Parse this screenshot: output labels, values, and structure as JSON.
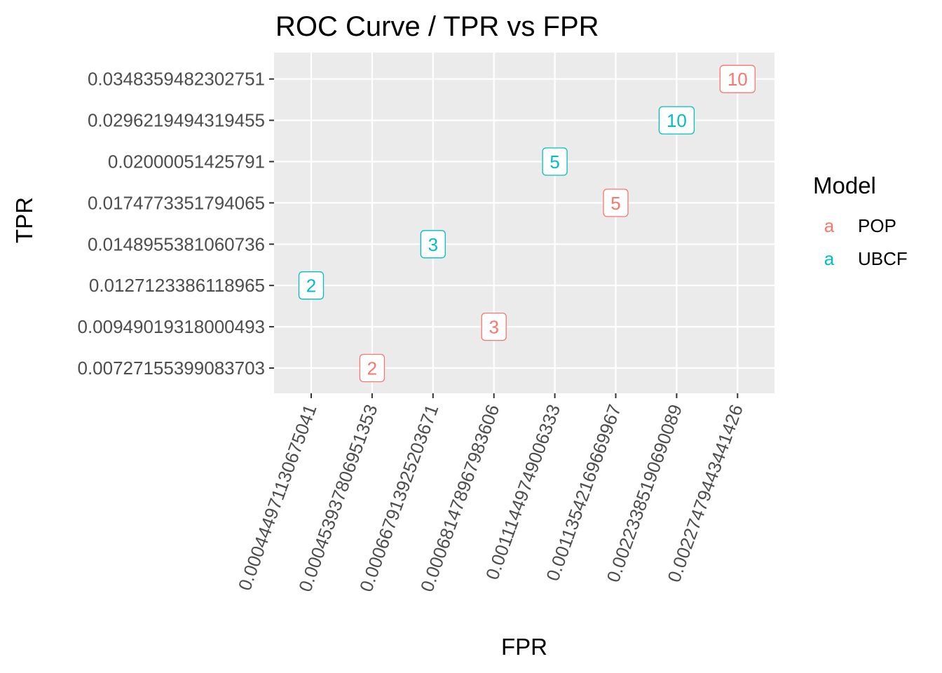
{
  "chart_data": {
    "type": "scatter",
    "title": "ROC Curve / TPR vs FPR",
    "xlabel": "FPR",
    "ylabel": "TPR",
    "x_categories": [
      "0.000444971130675041",
      "0.000453937806951353",
      "0.000667913925203671",
      "0.000681478967983606",
      "0.00111449749006333",
      "0.00113542169669967",
      "0.00223385190690089",
      "0.00227479443441426"
    ],
    "y_categories": [
      "0.00727155399083703",
      "0.00949019318000493",
      "0.0127123386118965",
      "0.0148955381060736",
      "0.0174773351794065",
      "0.02000051425791",
      "0.0296219494319455",
      "0.0348359482302751"
    ],
    "series": [
      {
        "name": "POP",
        "color": "#F8766D",
        "points": [
          {
            "x": "0.000453937806951353",
            "y": "0.00727155399083703",
            "label": "2"
          },
          {
            "x": "0.000681478967983606",
            "y": "0.00949019318000493",
            "label": "3"
          },
          {
            "x": "0.00113542169669967",
            "y": "0.0174773351794065",
            "label": "5"
          },
          {
            "x": "0.00227479443441426",
            "y": "0.0348359482302751",
            "label": "10"
          }
        ]
      },
      {
        "name": "UBCF",
        "color": "#00BFC4",
        "points": [
          {
            "x": "0.000444971130675041",
            "y": "0.0127123386118965",
            "label": "2"
          },
          {
            "x": "0.000667913925203671",
            "y": "0.0148955381060736",
            "label": "3"
          },
          {
            "x": "0.00111449749006333",
            "y": "0.02000051425791",
            "label": "5"
          },
          {
            "x": "0.00223385190690089",
            "y": "0.0296219494319455",
            "label": "10"
          }
        ]
      }
    ],
    "legend": {
      "title": "Model",
      "key_glyph": "a",
      "placement": "right"
    },
    "grid": true,
    "panel_background": "#EBEBEB",
    "grid_color": "#FFFFFF"
  }
}
